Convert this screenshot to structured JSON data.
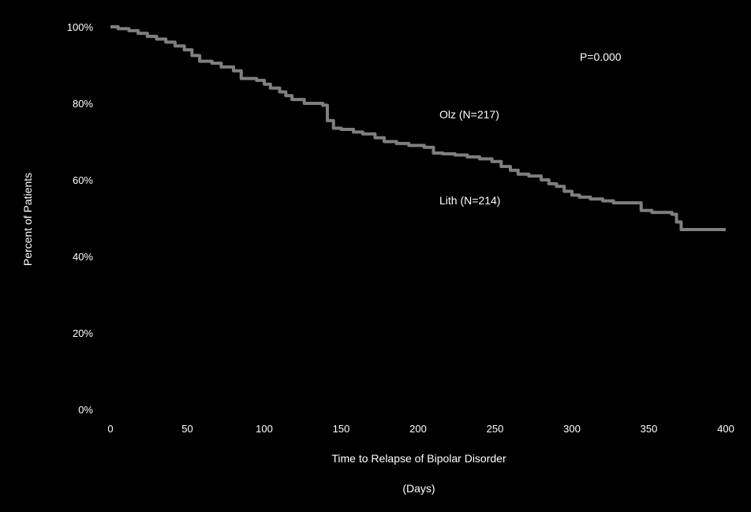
{
  "chart_data": {
    "type": "line",
    "title": "",
    "xlabel": "Time to Relapse of Bipolar Disorder",
    "xlabel_unit": "(Days)",
    "ylabel": "Percent of Patients",
    "xlim": [
      0,
      400
    ],
    "ylim": [
      0,
      100
    ],
    "x_ticks": [
      0,
      50,
      100,
      150,
      200,
      250,
      300,
      350,
      400
    ],
    "x_tick_labels": [
      "0",
      "50",
      "100",
      "150",
      "200",
      "250",
      "300",
      "350",
      "400"
    ],
    "y_ticks": [
      0,
      20,
      40,
      60,
      80,
      100
    ],
    "y_tick_labels": [
      "0%",
      "20%",
      "40%",
      "60%",
      "80%",
      "100%"
    ],
    "grid": false,
    "annotations": {
      "p_value": "P=0.000",
      "olz": "Olz (N=217)",
      "lith": "Lith (N=214)"
    },
    "series": [
      {
        "name": "",
        "color": "#7f7f7f",
        "step": true,
        "points": [
          [
            0,
            100
          ],
          [
            5,
            99.5
          ],
          [
            12,
            99
          ],
          [
            18,
            98.3
          ],
          [
            24,
            97.5
          ],
          [
            30,
            96.8
          ],
          [
            36,
            96
          ],
          [
            42,
            95
          ],
          [
            48,
            94
          ],
          [
            53,
            92.5
          ],
          [
            58,
            91
          ],
          [
            66,
            90.5
          ],
          [
            72,
            89.5
          ],
          [
            80,
            88.5
          ],
          [
            85,
            86.5
          ],
          [
            95,
            86
          ],
          [
            100,
            85
          ],
          [
            104,
            84
          ],
          [
            110,
            83
          ],
          [
            114,
            82
          ],
          [
            118,
            81
          ],
          [
            126,
            80
          ],
          [
            138,
            79.5
          ],
          [
            141,
            75.5
          ],
          [
            145,
            73.5
          ],
          [
            150,
            73.2
          ],
          [
            158,
            72.5
          ],
          [
            164,
            72
          ],
          [
            172,
            71
          ],
          [
            178,
            70
          ],
          [
            186,
            69.5
          ],
          [
            194,
            69
          ],
          [
            204,
            68.5
          ],
          [
            210,
            67
          ],
          [
            216,
            66.8
          ],
          [
            224,
            66.5
          ],
          [
            232,
            66
          ],
          [
            240,
            65.5
          ],
          [
            248,
            64.8
          ],
          [
            254,
            63.5
          ],
          [
            260,
            62.5
          ],
          [
            265,
            61.5
          ],
          [
            272,
            61
          ],
          [
            280,
            60
          ],
          [
            285,
            59
          ],
          [
            290,
            58.3
          ],
          [
            295,
            57
          ],
          [
            300,
            56
          ],
          [
            305,
            55.5
          ],
          [
            312,
            55
          ],
          [
            320,
            54.5
          ],
          [
            327,
            54
          ],
          [
            340,
            54
          ],
          [
            345,
            52
          ],
          [
            352,
            51.5
          ],
          [
            365,
            51
          ],
          [
            368,
            49
          ],
          [
            371,
            47
          ],
          [
            380,
            47
          ],
          [
            400,
            47
          ]
        ]
      }
    ]
  }
}
